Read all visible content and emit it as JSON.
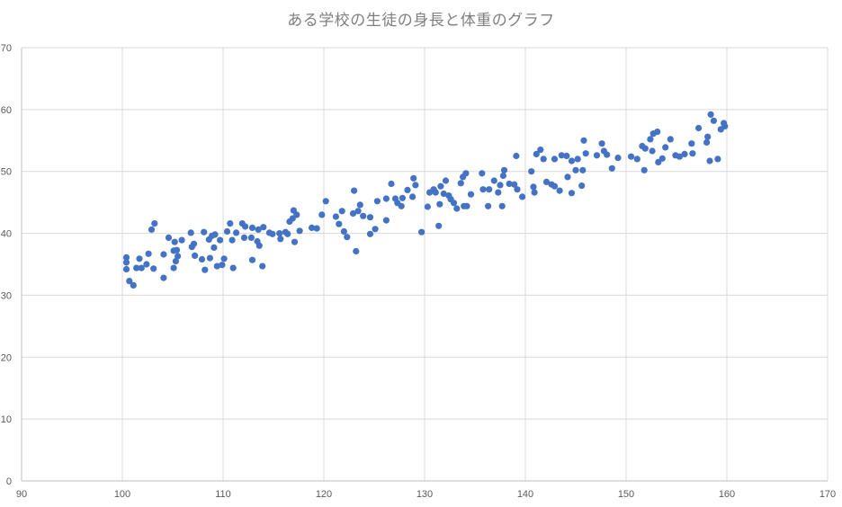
{
  "chart_data": {
    "type": "scatter",
    "title": "ある学校の生徒の身長と体重のグラフ",
    "xlabel": "",
    "ylabel": "",
    "xlim": [
      90,
      170
    ],
    "ylim": [
      0,
      70
    ],
    "x_ticks": [
      "90",
      "100",
      "110",
      "120",
      "130",
      "140",
      "150",
      "160",
      "170"
    ],
    "y_ticks": [
      "0",
      "10",
      "20",
      "30",
      "40",
      "50",
      "60",
      "70"
    ],
    "grid": true,
    "legend": "none",
    "marker_color": "#4472c4",
    "series": [
      {
        "points": [
          [
            100.4,
            36.1
          ],
          [
            100.4,
            35.3
          ],
          [
            100.4,
            34.2
          ],
          [
            100.7,
            32.3
          ],
          [
            101.1,
            31.6
          ],
          [
            101.4,
            34.4
          ],
          [
            101.7,
            35.9
          ],
          [
            101.9,
            34.4
          ],
          [
            102.4,
            35.0
          ],
          [
            102.6,
            36.7
          ],
          [
            102.9,
            40.6
          ],
          [
            103.1,
            34.3
          ],
          [
            103.2,
            41.6
          ],
          [
            104.1,
            32.8
          ],
          [
            104.1,
            36.6
          ],
          [
            104.6,
            39.3
          ],
          [
            105.1,
            37.2
          ],
          [
            105.1,
            34.4
          ],
          [
            105.2,
            38.6
          ],
          [
            105.3,
            35.5
          ],
          [
            105.4,
            37.3
          ],
          [
            105.5,
            36.3
          ],
          [
            105.9,
            38.9
          ],
          [
            106.8,
            40.1
          ],
          [
            106.9,
            37.8
          ],
          [
            107.1,
            38.3
          ],
          [
            107.2,
            36.4
          ],
          [
            107.9,
            35.8
          ],
          [
            108.1,
            40.2
          ],
          [
            108.2,
            34.1
          ],
          [
            108.6,
            39.0
          ],
          [
            108.7,
            36.0
          ],
          [
            108.9,
            39.6
          ],
          [
            109.1,
            37.7
          ],
          [
            109.2,
            39.8
          ],
          [
            109.4,
            34.7
          ],
          [
            109.7,
            38.9
          ],
          [
            109.9,
            34.9
          ],
          [
            110.1,
            35.9
          ],
          [
            110.4,
            40.3
          ],
          [
            110.7,
            41.6
          ],
          [
            110.9,
            38.9
          ],
          [
            111.0,
            34.4
          ],
          [
            111.3,
            40.1
          ],
          [
            111.9,
            41.6
          ],
          [
            112.1,
            39.3
          ],
          [
            112.2,
            41.1
          ],
          [
            112.8,
            39.3
          ],
          [
            112.9,
            35.7
          ],
          [
            112.9,
            40.9
          ],
          [
            113.4,
            38.7
          ],
          [
            113.5,
            40.6
          ],
          [
            113.6,
            38.0
          ],
          [
            113.9,
            34.7
          ],
          [
            114.0,
            41.0
          ],
          [
            114.6,
            40.1
          ],
          [
            114.9,
            39.9
          ],
          [
            115.6,
            40.0
          ],
          [
            115.7,
            39.1
          ],
          [
            116.2,
            40.2
          ],
          [
            116.4,
            39.9
          ],
          [
            116.6,
            41.9
          ],
          [
            116.9,
            42.4
          ],
          [
            117.0,
            43.7
          ],
          [
            117.1,
            38.6
          ],
          [
            117.3,
            43.0
          ],
          [
            117.6,
            40.4
          ],
          [
            118.8,
            40.9
          ],
          [
            119.3,
            40.8
          ],
          [
            119.8,
            43.0
          ],
          [
            120.2,
            45.2
          ],
          [
            121.2,
            42.7
          ],
          [
            121.5,
            41.5
          ],
          [
            121.8,
            43.6
          ],
          [
            122.0,
            40.3
          ],
          [
            122.3,
            39.4
          ],
          [
            122.9,
            43.2
          ],
          [
            123.0,
            46.9
          ],
          [
            123.2,
            37.1
          ],
          [
            123.4,
            43.6
          ],
          [
            123.6,
            44.6
          ],
          [
            123.9,
            42.8
          ],
          [
            124.6,
            42.6
          ],
          [
            124.6,
            39.9
          ],
          [
            125.1,
            40.7
          ],
          [
            125.3,
            45.2
          ],
          [
            126.2,
            45.6
          ],
          [
            126.2,
            42.1
          ],
          [
            126.7,
            48.0
          ],
          [
            127.1,
            45.6
          ],
          [
            127.3,
            44.9
          ],
          [
            127.7,
            44.4
          ],
          [
            127.8,
            45.7
          ],
          [
            128.3,
            47.0
          ],
          [
            128.8,
            45.9
          ],
          [
            128.9,
            48.9
          ],
          [
            129.1,
            47.8
          ],
          [
            129.7,
            40.2
          ],
          [
            130.3,
            44.3
          ],
          [
            130.5,
            46.6
          ],
          [
            130.9,
            47.1
          ],
          [
            131.1,
            46.6
          ],
          [
            131.4,
            41.2
          ],
          [
            131.5,
            44.7
          ],
          [
            131.6,
            47.6
          ],
          [
            131.9,
            46.4
          ],
          [
            132.1,
            48.5
          ],
          [
            132.4,
            46.1
          ],
          [
            132.6,
            45.5
          ],
          [
            132.9,
            44.9
          ],
          [
            133.2,
            44.0
          ],
          [
            133.6,
            48.1
          ],
          [
            133.8,
            49.1
          ],
          [
            133.9,
            44.4
          ],
          [
            134.1,
            49.7
          ],
          [
            134.2,
            44.4
          ],
          [
            134.6,
            46.3
          ],
          [
            135.7,
            49.7
          ],
          [
            135.8,
            47.1
          ],
          [
            136.3,
            44.4
          ],
          [
            136.4,
            47.1
          ],
          [
            136.9,
            48.5
          ],
          [
            137.3,
            46.6
          ],
          [
            137.5,
            47.8
          ],
          [
            137.7,
            44.4
          ],
          [
            137.8,
            49.3
          ],
          [
            137.9,
            50.2
          ],
          [
            138.4,
            48.0
          ],
          [
            138.9,
            47.9
          ],
          [
            139.1,
            52.5
          ],
          [
            139.2,
            47.1
          ],
          [
            139.7,
            45.9
          ],
          [
            140.6,
            50.0
          ],
          [
            140.8,
            47.5
          ],
          [
            140.9,
            46.6
          ],
          [
            141.1,
            52.8
          ],
          [
            141.5,
            53.5
          ],
          [
            141.8,
            52.0
          ],
          [
            142.1,
            48.3
          ],
          [
            142.6,
            47.9
          ],
          [
            142.9,
            52.0
          ],
          [
            142.9,
            47.6
          ],
          [
            143.4,
            46.9
          ],
          [
            143.6,
            52.6
          ],
          [
            144.1,
            52.5
          ],
          [
            144.2,
            49.1
          ],
          [
            144.6,
            46.5
          ],
          [
            144.6,
            51.7
          ],
          [
            145.0,
            50.2
          ],
          [
            145.2,
            52.0
          ],
          [
            145.6,
            47.7
          ],
          [
            145.7,
            50.2
          ],
          [
            145.8,
            55.0
          ],
          [
            146.0,
            52.9
          ],
          [
            147.1,
            52.6
          ],
          [
            147.6,
            54.5
          ],
          [
            147.8,
            53.3
          ],
          [
            148.1,
            52.7
          ],
          [
            148.6,
            50.5
          ],
          [
            149.2,
            52.2
          ],
          [
            150.5,
            52.4
          ],
          [
            151.1,
            52.0
          ],
          [
            151.6,
            54.1
          ],
          [
            151.8,
            50.2
          ],
          [
            151.9,
            53.7
          ],
          [
            152.4,
            55.2
          ],
          [
            152.6,
            53.3
          ],
          [
            152.7,
            56.1
          ],
          [
            153.1,
            56.4
          ],
          [
            153.2,
            51.5
          ],
          [
            153.6,
            52.1
          ],
          [
            153.9,
            53.9
          ],
          [
            154.4,
            55.2
          ],
          [
            154.9,
            52.6
          ],
          [
            155.3,
            52.4
          ],
          [
            155.8,
            52.8
          ],
          [
            156.5,
            54.5
          ],
          [
            156.6,
            52.9
          ],
          [
            157.2,
            57.0
          ],
          [
            158.0,
            54.7
          ],
          [
            158.1,
            55.6
          ],
          [
            158.3,
            51.7
          ],
          [
            158.4,
            59.2
          ],
          [
            158.7,
            58.2
          ],
          [
            159.1,
            52.0
          ],
          [
            159.4,
            56.8
          ],
          [
            159.7,
            57.8
          ],
          [
            159.8,
            57.3
          ]
        ]
      }
    ]
  }
}
